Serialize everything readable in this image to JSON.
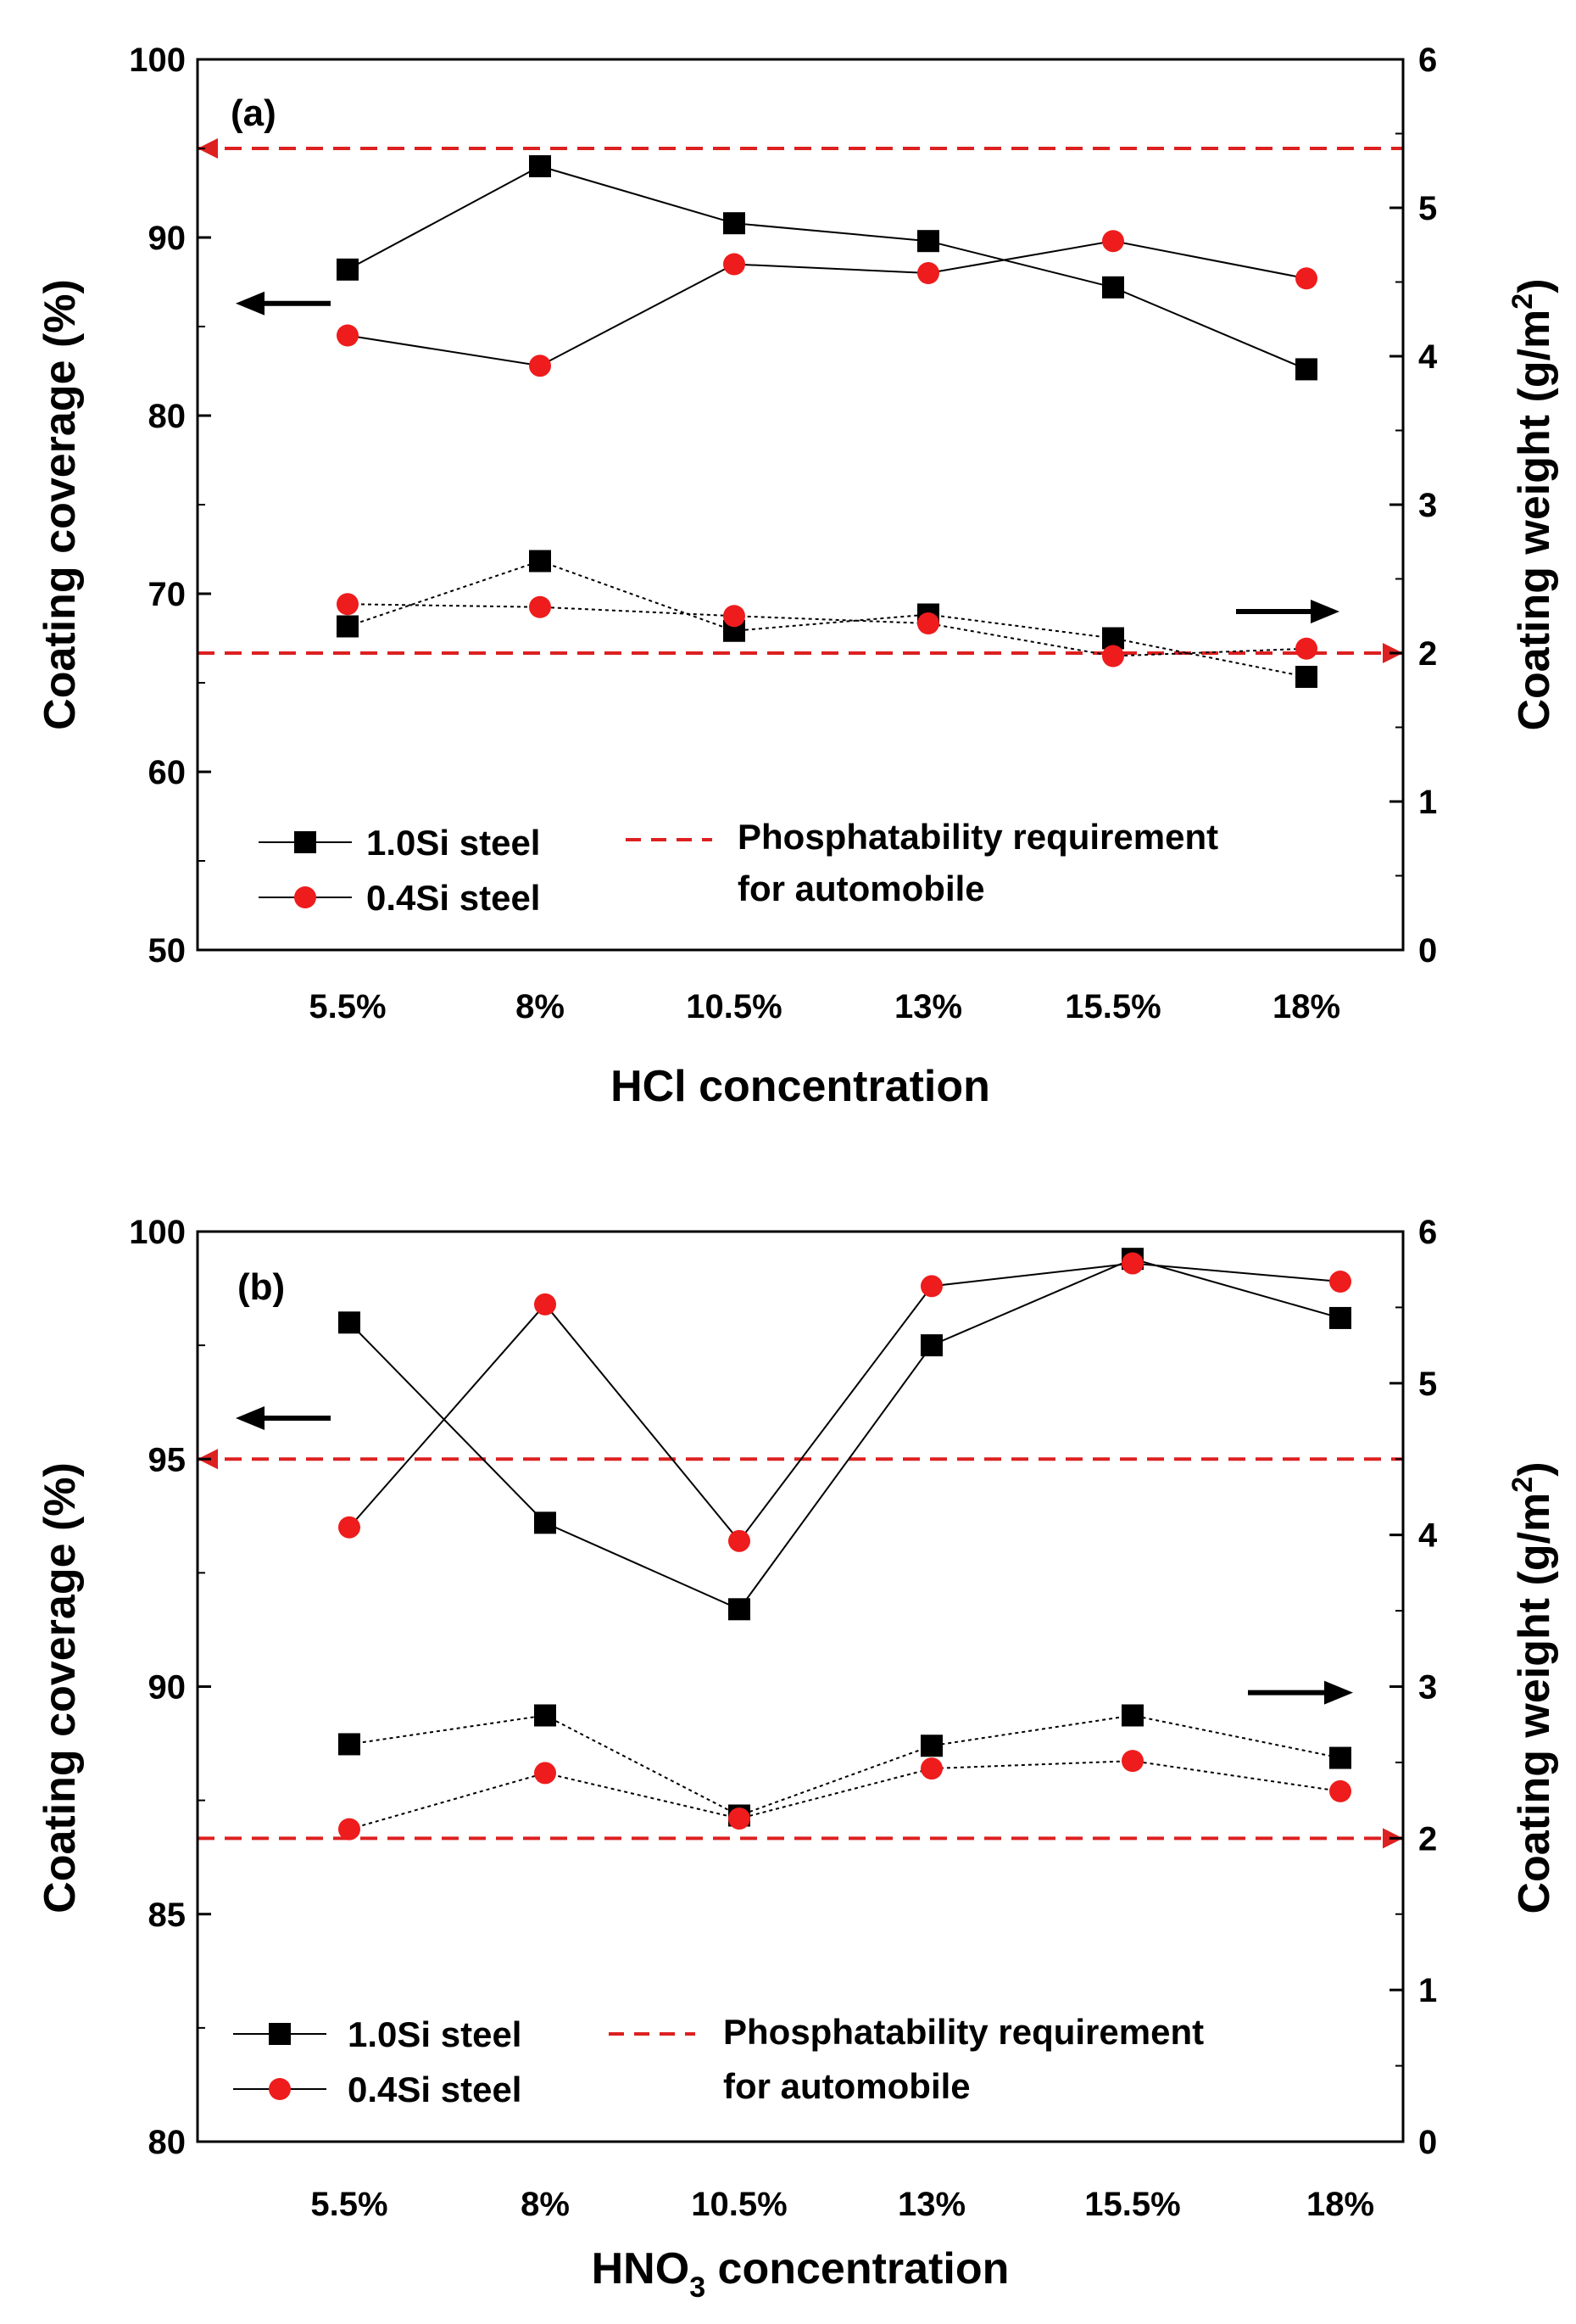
{
  "colors": {
    "series_1": "#000000",
    "series_2": "#ee1c1c",
    "requirement": "#dd2020",
    "axis": "#000000"
  },
  "chart_data": [
    {
      "type": "line",
      "panel_tag": "(a)",
      "xlabel": "HCl concentration",
      "xlabel_sub": "",
      "xlabel_rest": "",
      "categories": [
        "5.5%",
        "8%",
        "10.5%",
        "13%",
        "15.5%",
        "18%"
      ],
      "ylabel_left": "Coating coverage (%)",
      "ylabel_right_main": "Coating weight (g/m",
      "ylabel_right_sup": "2",
      "ylabel_right_close": ")",
      "ylim_left": [
        50,
        100
      ],
      "yticks_left": [
        "50",
        "60",
        "70",
        "80",
        "90",
        "100"
      ],
      "ylim_right": [
        0,
        6
      ],
      "yticks_right": [
        "0",
        "1",
        "2",
        "3",
        "4",
        "5",
        "6"
      ],
      "series": [
        {
          "name": "1.0Si steel",
          "marker": "square",
          "axis": "left",
          "line": "solid",
          "values": [
            88.2,
            94.0,
            90.8,
            89.8,
            87.2,
            82.6
          ]
        },
        {
          "name": "0.4Si steel",
          "marker": "circle",
          "axis": "left",
          "line": "solid",
          "values": [
            84.5,
            82.8,
            88.5,
            88.0,
            89.8,
            87.7
          ]
        },
        {
          "name": "1.0Si steel",
          "marker": "square",
          "axis": "right",
          "line": "dotted",
          "values": [
            2.18,
            2.62,
            2.15,
            2.26,
            2.1,
            1.84
          ]
        },
        {
          "name": "0.4Si steel",
          "marker": "circle",
          "axis": "right",
          "line": "dotted",
          "values": [
            2.33,
            2.31,
            2.25,
            2.2,
            1.98,
            2.03
          ]
        }
      ],
      "requirement_lines": [
        {
          "axis": "left",
          "value": 95,
          "arrow": "left"
        },
        {
          "axis": "right",
          "value": 2,
          "arrow": "right"
        }
      ],
      "direction_arrows": {
        "left": 86.3,
        "right": 2.28
      },
      "legend": {
        "series_labels": [
          "1.0Si steel",
          "0.4Si steel"
        ],
        "requirement_line1": "Phosphatability requirement",
        "requirement_line2": "for automobile"
      }
    },
    {
      "type": "line",
      "panel_tag": "(b)",
      "xlabel": "HNO",
      "xlabel_sub": "3",
      "xlabel_rest": " concentration",
      "categories": [
        "5.5%",
        "8%",
        "10.5%",
        "13%",
        "15.5%",
        "18%"
      ],
      "ylabel_left": "Coating coverage (%)",
      "ylabel_right_main": "Coating weight (g/m",
      "ylabel_right_sup": "2",
      "ylabel_right_close": ")",
      "ylim_left": [
        80,
        100
      ],
      "yticks_left": [
        "80",
        "85",
        "90",
        "95",
        "100"
      ],
      "ylim_right": [
        0,
        6
      ],
      "yticks_right": [
        "0",
        "1",
        "2",
        "3",
        "4",
        "5",
        "6"
      ],
      "series": [
        {
          "name": "1.0Si steel",
          "marker": "square",
          "axis": "left",
          "line": "solid",
          "values": [
            98.0,
            93.6,
            91.7,
            97.5,
            99.4,
            98.1
          ]
        },
        {
          "name": "0.4Si steel",
          "marker": "circle",
          "axis": "left",
          "line": "solid",
          "values": [
            93.5,
            98.4,
            93.2,
            98.8,
            99.3,
            98.9
          ]
        },
        {
          "name": "1.0Si steel",
          "marker": "square",
          "axis": "right",
          "line": "dotted",
          "values": [
            2.62,
            2.81,
            2.15,
            2.61,
            2.81,
            2.53
          ]
        },
        {
          "name": "0.4Si steel",
          "marker": "circle",
          "axis": "right",
          "line": "dotted",
          "values": [
            2.06,
            2.43,
            2.13,
            2.46,
            2.51,
            2.31
          ]
        }
      ],
      "requirement_lines": [
        {
          "axis": "left",
          "value": 95,
          "arrow": "left"
        },
        {
          "axis": "right",
          "value": 2,
          "arrow": "right"
        }
      ],
      "direction_arrows": {
        "left": 95.9,
        "right": 2.96
      },
      "legend": {
        "series_labels": [
          "1.0Si steel",
          "0.4Si steel"
        ],
        "requirement_line1": "Phosphatability requirement",
        "requirement_line2": "for automobile"
      }
    }
  ]
}
